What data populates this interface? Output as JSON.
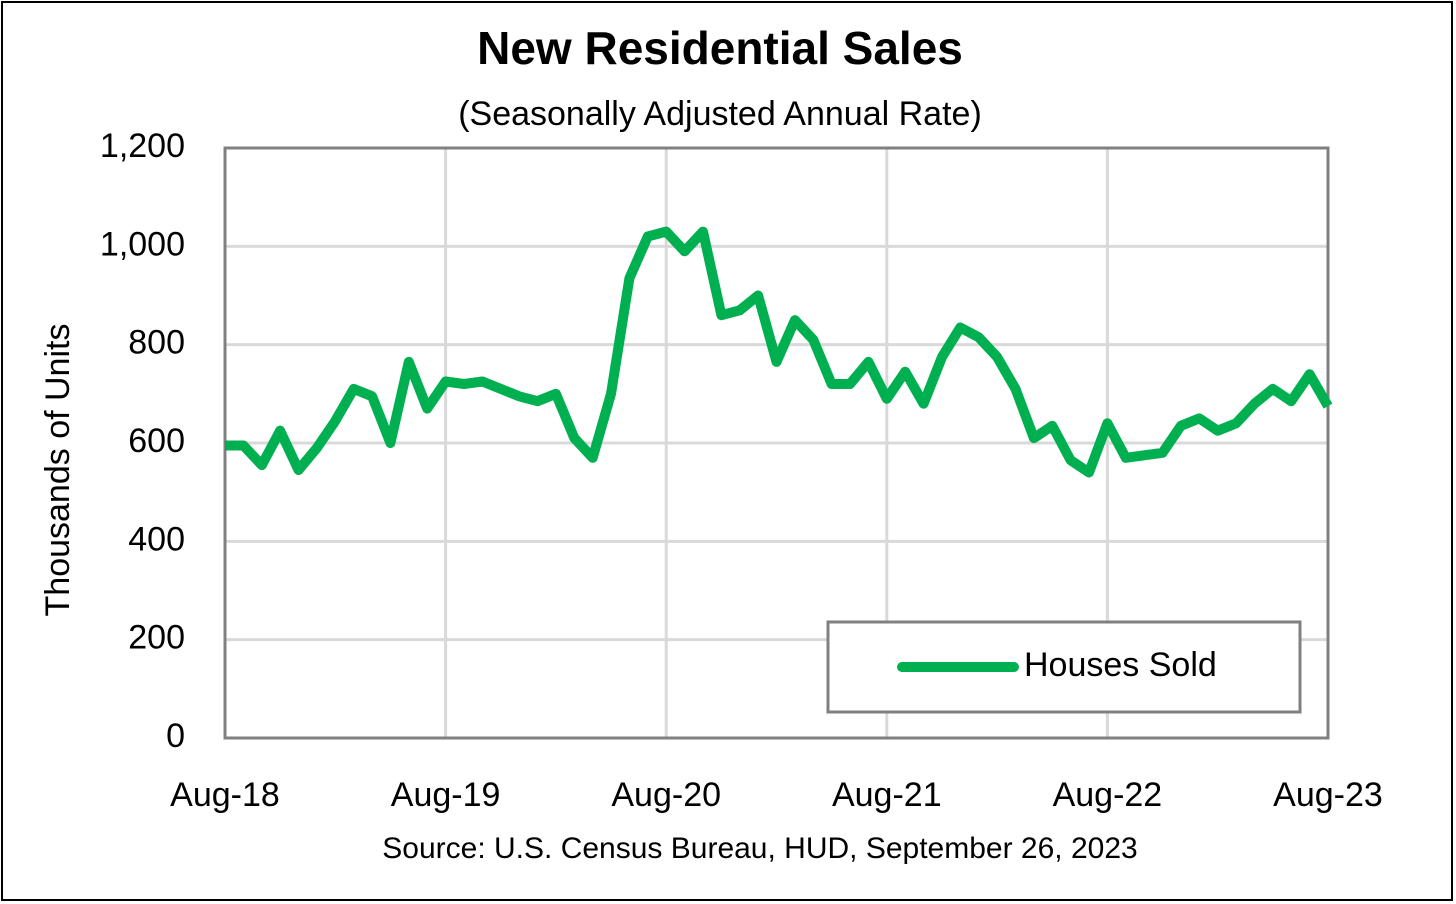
{
  "chart_data": {
    "type": "line",
    "title": "New Residential Sales",
    "subtitle": "(Seasonally Adjusted Annual Rate)",
    "y_label": "Thousands of Units",
    "source": "Source:  U.S. Census Bureau, HUD, September 26, 2023",
    "categories": [
      "Aug-18",
      null,
      null,
      null,
      null,
      null,
      null,
      null,
      null,
      null,
      null,
      null,
      "Aug-19",
      null,
      null,
      null,
      null,
      null,
      null,
      null,
      null,
      null,
      null,
      null,
      "Aug-20",
      null,
      null,
      null,
      null,
      null,
      null,
      null,
      null,
      null,
      null,
      null,
      "Aug-21",
      null,
      null,
      null,
      null,
      null,
      null,
      null,
      null,
      null,
      null,
      null,
      "Aug-22",
      null,
      null,
      null,
      null,
      null,
      null,
      null,
      null,
      null,
      null,
      null,
      "Aug-23"
    ],
    "series": [
      {
        "name": "Houses Sold",
        "color": "#00b050",
        "values": [
          595,
          595,
          555,
          625,
          545,
          590,
          645,
          710,
          695,
          600,
          765,
          670,
          725,
          720,
          725,
          710,
          695,
          685,
          700,
          610,
          570,
          700,
          935,
          1020,
          1030,
          990,
          1030,
          860,
          870,
          900,
          765,
          850,
          810,
          720,
          720,
          765,
          690,
          745,
          680,
          775,
          835,
          815,
          775,
          710,
          610,
          635,
          565,
          540,
          640,
          570,
          575,
          580,
          635,
          650,
          625,
          640,
          680,
          710,
          685,
          740,
          675
        ]
      }
    ],
    "ylim": [
      0,
      1200
    ],
    "yticks": [
      0,
      200,
      400,
      600,
      800,
      {
        "value": 1000,
        "label": "1,000"
      },
      {
        "value": 1200,
        "label": "1,200"
      }
    ],
    "grid": true,
    "legend": "lower right"
  }
}
